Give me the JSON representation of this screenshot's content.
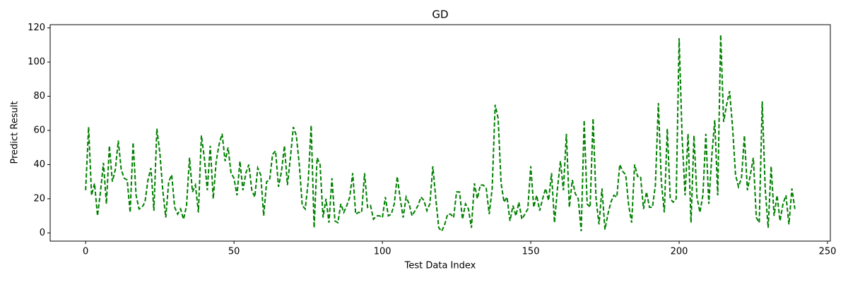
{
  "chart_data": {
    "type": "line",
    "title": "GD",
    "xlabel": "Test Data Index",
    "ylabel": "Predict Result",
    "x": [
      0,
      1,
      2,
      3,
      4,
      5,
      6,
      7,
      8,
      9,
      10,
      11,
      12,
      13,
      14,
      15,
      16,
      17,
      18,
      19,
      20,
      21,
      22,
      23,
      24,
      25,
      26,
      27,
      28,
      29,
      30,
      31,
      32,
      33,
      34,
      35,
      36,
      37,
      38,
      39,
      40,
      41,
      42,
      43,
      44,
      45,
      46,
      47,
      48,
      49,
      50,
      51,
      52,
      53,
      54,
      55,
      56,
      57,
      58,
      59,
      60,
      61,
      62,
      63,
      64,
      65,
      66,
      67,
      68,
      69,
      70,
      71,
      72,
      73,
      74,
      75,
      76,
      77,
      78,
      79,
      80,
      81,
      82,
      83,
      84,
      85,
      86,
      87,
      88,
      89,
      90,
      91,
      92,
      93,
      94,
      95,
      96,
      97,
      98,
      99,
      100,
      101,
      102,
      103,
      104,
      105,
      106,
      107,
      108,
      109,
      110,
      111,
      112,
      113,
      114,
      115,
      116,
      117,
      118,
      119,
      120,
      121,
      122,
      123,
      124,
      125,
      126,
      127,
      128,
      129,
      130,
      131,
      132,
      133,
      134,
      135,
      136,
      137,
      138,
      139,
      140,
      141,
      142,
      143,
      144,
      145,
      146,
      147,
      148,
      149,
      150,
      151,
      152,
      153,
      154,
      155,
      156,
      157,
      158,
      159,
      160,
      161,
      162,
      163,
      164,
      165,
      166,
      167,
      168,
      169,
      170,
      171,
      172,
      173,
      174,
      175,
      176,
      177,
      178,
      179,
      180,
      181,
      182,
      183,
      184,
      185,
      186,
      187,
      188,
      189,
      190,
      191,
      192,
      193,
      194,
      195,
      196,
      197,
      198,
      199,
      200,
      201,
      202,
      203,
      204,
      205,
      206,
      207,
      208,
      209,
      210,
      211,
      212,
      213,
      214,
      215,
      216,
      217,
      218,
      219,
      220,
      221,
      222,
      223,
      224,
      225,
      226,
      227,
      228,
      229,
      230,
      231,
      232,
      233,
      234,
      235,
      236,
      237,
      238,
      239
    ],
    "series": [
      {
        "name": "GD",
        "color": "#008000",
        "values": [
          25,
          62,
          22,
          29,
          10,
          24,
          41,
          17,
          51,
          30,
          37,
          54,
          37,
          32,
          31,
          12,
          53,
          22,
          14,
          15,
          18,
          31,
          38,
          13,
          61,
          47,
          25,
          9,
          30,
          34,
          15,
          11,
          14,
          8,
          16,
          44,
          24,
          28,
          12,
          57,
          44,
          25,
          51,
          20,
          42,
          52,
          58,
          42,
          50,
          35,
          32,
          22,
          42,
          25,
          35,
          40,
          25,
          21,
          38,
          34,
          10,
          30,
          31,
          46,
          48,
          27,
          36,
          51,
          28,
          44,
          62,
          57,
          40,
          16,
          14,
          30,
          63,
          3,
          44,
          40,
          9,
          20,
          6,
          32,
          7,
          6,
          17,
          12,
          16,
          21,
          35,
          11,
          12,
          12,
          35,
          15,
          16,
          8,
          10,
          10,
          9,
          21,
          10,
          11,
          17,
          33,
          20,
          9,
          21,
          17,
          10,
          13,
          16,
          21,
          19,
          13,
          17,
          39,
          20,
          3,
          1,
          5,
          11,
          11,
          9,
          24,
          24,
          8,
          17,
          14,
          3,
          29,
          20,
          28,
          28,
          26,
          11,
          26,
          75,
          67,
          29,
          18,
          21,
          7,
          16,
          10,
          18,
          8,
          11,
          14,
          39,
          15,
          22,
          13,
          20,
          26,
          19,
          35,
          6,
          26,
          42,
          25,
          58,
          15,
          31,
          23,
          20,
          1,
          66,
          17,
          15,
          67,
          20,
          5,
          26,
          2,
          11,
          18,
          22,
          21,
          40,
          36,
          34,
          16,
          6,
          40,
          33,
          33,
          14,
          24,
          15,
          15,
          28,
          76,
          30,
          12,
          61,
          20,
          18,
          20,
          114,
          56,
          22,
          58,
          6,
          57,
          21,
          12,
          22,
          58,
          17,
          45,
          66,
          22,
          116,
          65,
          75,
          83,
          62,
          34,
          27,
          32,
          57,
          25,
          34,
          44,
          9,
          6,
          77,
          26,
          3,
          39,
          10,
          22,
          7,
          17,
          22,
          5,
          26,
          14
        ]
      }
    ],
    "xlim": [
      -11.95,
      250.95
    ],
    "ylim": [
      -4.8,
      121.9
    ],
    "xticks": [
      0,
      50,
      100,
      150,
      200,
      250
    ],
    "yticks": [
      0,
      20,
      40,
      60,
      80,
      100,
      120
    ]
  }
}
